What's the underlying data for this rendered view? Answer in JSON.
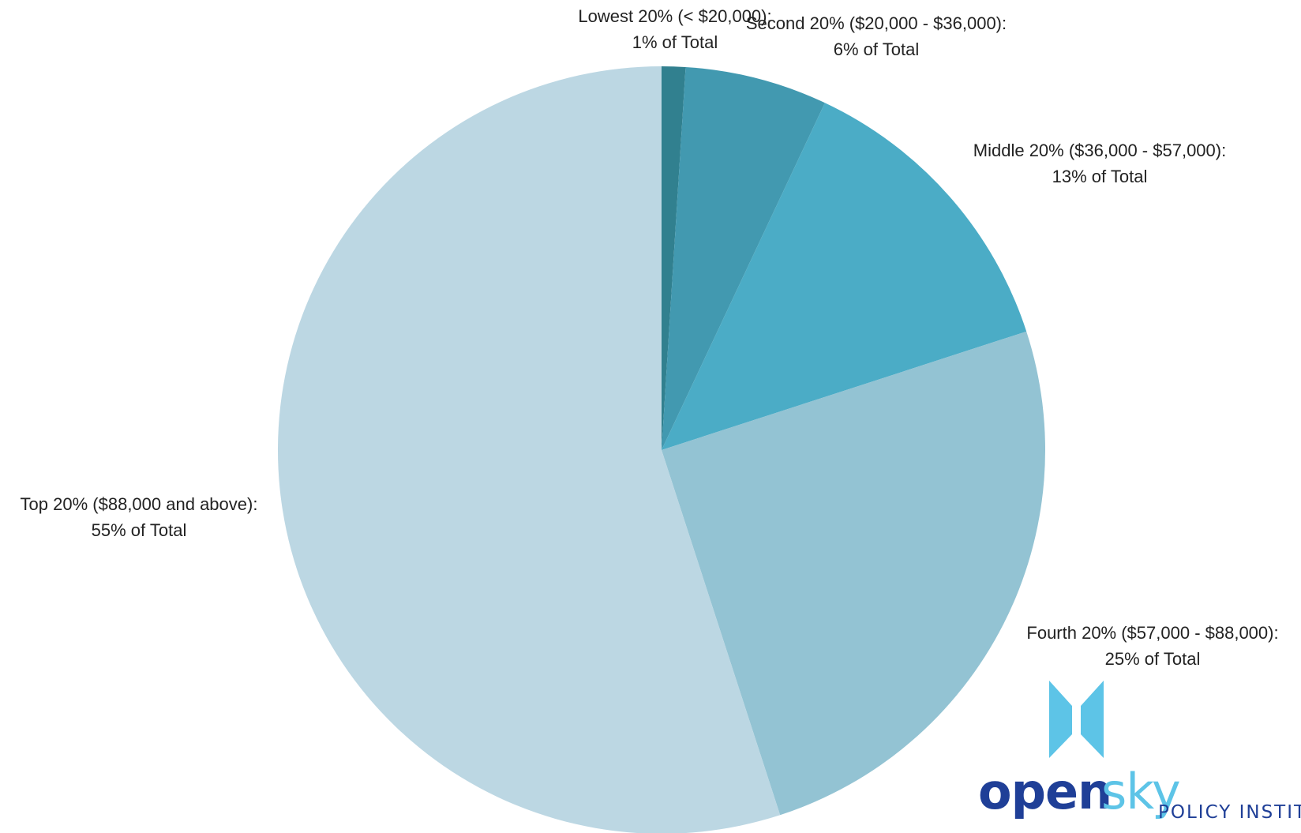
{
  "chart_data": {
    "type": "pie",
    "title": "",
    "start_angle": "12 o'clock, clockwise",
    "slices": [
      {
        "label": "Lowest 20% (< $20,000):",
        "value": 1,
        "value_text": "1% of Total",
        "color": "#31808F"
      },
      {
        "label": "Second 20% ($20,000 - $36,000):",
        "value": 6,
        "value_text": "6% of Total",
        "color": "#4299B0"
      },
      {
        "label": "Middle 20% ($36,000 - $57,000):",
        "value": 13,
        "value_text": "13% of Total",
        "color": "#4BACC6"
      },
      {
        "label": "Fourth 20% ($57,000 - $88,000):",
        "value": 25,
        "value_text": "25% of Total",
        "color": "#93C3D3"
      },
      {
        "label": "Top 20% ($88,000 and above):",
        "value": 55,
        "value_text": "55% of Total",
        "color": "#BCD7E3"
      }
    ]
  },
  "logo": {
    "word_open": "open",
    "word_sky": "sky",
    "subtitle": "POLICY INSTITUTE",
    "colors": {
      "dark": "#1F3F97",
      "light": "#5DC4E7"
    }
  }
}
